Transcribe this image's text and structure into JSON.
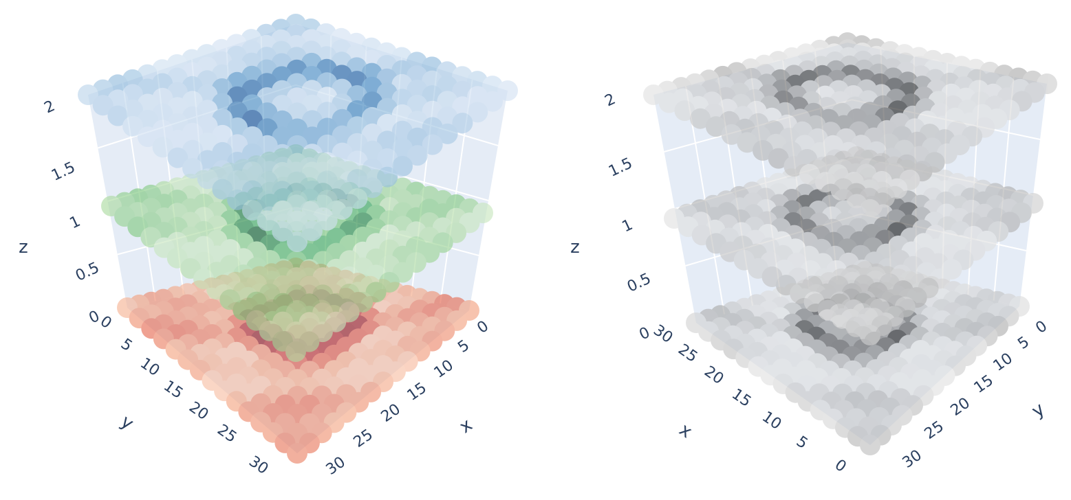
{
  "chart_data": [
    {
      "type": "scatter3d",
      "view": "left",
      "axes": {
        "x": {
          "title": "x",
          "ticks": [
            "0",
            "5",
            "10",
            "15",
            "20",
            "25",
            "30"
          ],
          "range": [
            0,
            31
          ]
        },
        "y": {
          "title": "y",
          "ticks": [
            "0",
            "5",
            "10",
            "15",
            "20",
            "25",
            "30"
          ],
          "range": [
            0,
            31
          ]
        },
        "z": {
          "title": "z",
          "ticks": [
            "0",
            "0.5",
            "1",
            "1.5",
            "2"
          ],
          "range": [
            0,
            2
          ]
        }
      },
      "grid": true,
      "layers": [
        {
          "z": 0,
          "colorscale": "Reds"
        },
        {
          "z": 1,
          "colorscale": "Greens"
        },
        {
          "z": 2,
          "colorscale": "Blues"
        }
      ]
    },
    {
      "type": "scatter3d",
      "view": "right",
      "axes": {
        "x": {
          "title": "x",
          "ticks": [
            "0",
            "5",
            "10",
            "15",
            "20",
            "25",
            "30"
          ],
          "range": [
            0,
            31
          ]
        },
        "y": {
          "title": "y",
          "ticks": [
            "0",
            "5",
            "10",
            "15",
            "20",
            "25",
            "30"
          ],
          "range": [
            0,
            31
          ]
        },
        "z": {
          "title": "z",
          "ticks": [
            "0",
            "0.5",
            "1",
            "1.5",
            "2"
          ],
          "range": [
            0,
            2
          ]
        }
      },
      "grid": true,
      "layers": [
        {
          "z": 0,
          "colorscale": "Greys"
        },
        {
          "z": 1,
          "colorscale": "Greys"
        },
        {
          "z": 2,
          "colorscale": "Greys"
        }
      ]
    }
  ],
  "colors": {
    "pane": "#e5ecf6",
    "grid": "#ffffff",
    "text": "#2a3f5f",
    "reds": [
      "#fde0d2",
      "#f4a582",
      "#e4624a",
      "#c0282a",
      "#8c1018"
    ],
    "greens": [
      "#e3f3de",
      "#b5dea8",
      "#74c476",
      "#31a354",
      "#0a5a25"
    ],
    "blues": [
      "#e3edf8",
      "#c6dbef",
      "#8db9dc",
      "#3f87c0",
      "#0c4a91"
    ],
    "greys": [
      "#f2f2f2",
      "#d6d6d6",
      "#a9a9a9",
      "#6b6b6b",
      "#1a1a1a"
    ]
  }
}
